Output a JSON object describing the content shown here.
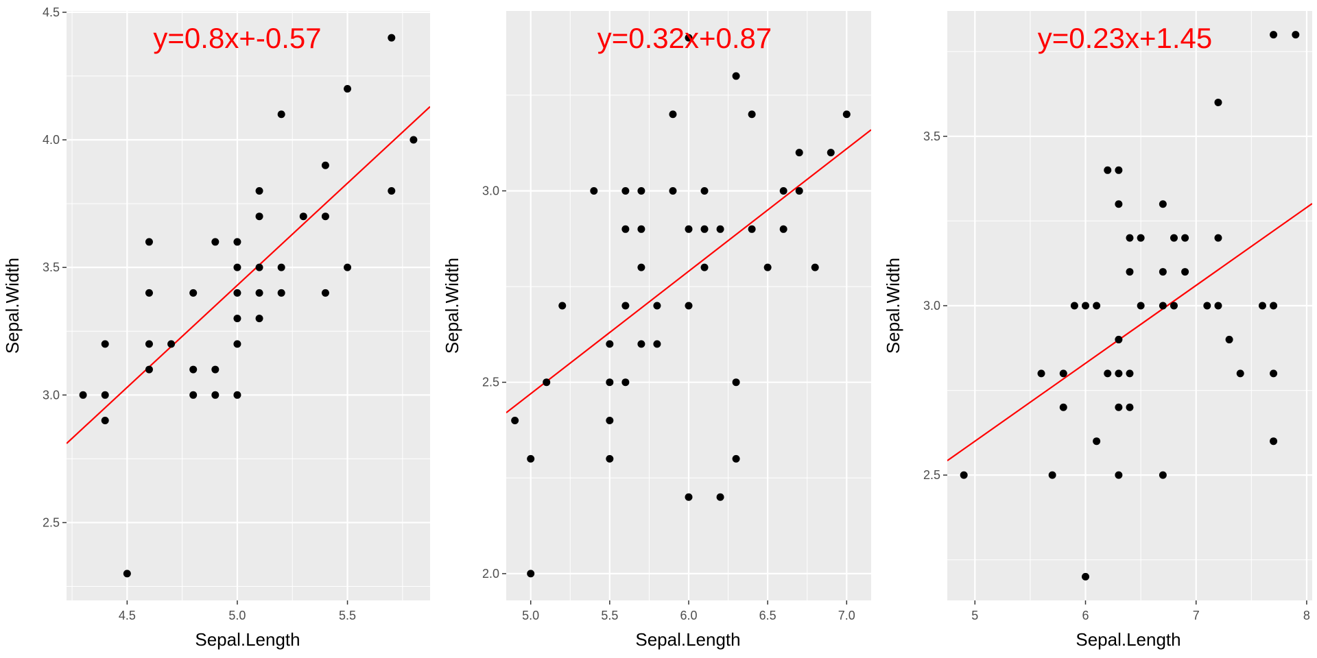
{
  "colors": {
    "panel_bg": "#ebebeb",
    "grid_major": "#ffffff",
    "point": "#000000",
    "fit_line": "#ff0000",
    "tick_text": "#4d4d4d"
  },
  "chart_data": [
    {
      "type": "scatter",
      "title": "",
      "equation_label": "y=0.8x+-0.57",
      "fit": {
        "slope": 0.8,
        "intercept": -0.57
      },
      "xlabel": "Sepal.Length",
      "ylabel": "Sepal.Width",
      "xlim": [
        4.225,
        5.875
      ],
      "ylim": [
        2.195,
        4.505
      ],
      "xticks": [
        4.5,
        5.0,
        5.5
      ],
      "xtick_labels": [
        "4.5",
        "5.0",
        "5.5"
      ],
      "yticks": [
        2.5,
        3.0,
        3.5,
        4.0,
        4.5
      ],
      "ytick_labels": [
        "2.5",
        "3.0",
        "3.5",
        "4.0",
        "4.5"
      ],
      "grid": true,
      "points": [
        [
          4.3,
          3.0
        ],
        [
          4.4,
          3.2
        ],
        [
          4.4,
          3.0
        ],
        [
          4.4,
          2.9
        ],
        [
          4.5,
          2.3
        ],
        [
          4.6,
          3.6
        ],
        [
          4.6,
          3.4
        ],
        [
          4.6,
          3.2
        ],
        [
          4.6,
          3.1
        ],
        [
          4.7,
          3.2
        ],
        [
          4.8,
          3.4
        ],
        [
          4.8,
          3.1
        ],
        [
          4.8,
          3.0
        ],
        [
          4.9,
          3.6
        ],
        [
          4.9,
          3.1
        ],
        [
          4.9,
          3.0
        ],
        [
          5.0,
          3.6
        ],
        [
          5.0,
          3.5
        ],
        [
          5.0,
          3.4
        ],
        [
          5.0,
          3.3
        ],
        [
          5.0,
          3.2
        ],
        [
          5.0,
          3.0
        ],
        [
          5.1,
          3.8
        ],
        [
          5.1,
          3.7
        ],
        [
          5.1,
          3.5
        ],
        [
          5.1,
          3.4
        ],
        [
          5.1,
          3.3
        ],
        [
          5.2,
          4.1
        ],
        [
          5.2,
          3.5
        ],
        [
          5.2,
          3.4
        ],
        [
          5.3,
          3.7
        ],
        [
          5.4,
          3.9
        ],
        [
          5.4,
          3.7
        ],
        [
          5.4,
          3.4
        ],
        [
          5.5,
          4.2
        ],
        [
          5.5,
          3.5
        ],
        [
          5.7,
          4.4
        ],
        [
          5.7,
          3.8
        ],
        [
          5.8,
          4.0
        ]
      ]
    },
    {
      "type": "scatter",
      "title": "",
      "equation_label": "y=0.32x+0.87",
      "fit": {
        "slope": 0.32,
        "intercept": 0.87
      },
      "xlabel": "Sepal.Length",
      "ylabel": "Sepal.Width",
      "xlim": [
        4.845,
        7.155
      ],
      "ylim": [
        1.93,
        3.47
      ],
      "xticks": [
        5.0,
        5.5,
        6.0,
        6.5,
        7.0
      ],
      "xtick_labels": [
        "5.0",
        "5.5",
        "6.0",
        "6.5",
        "7.0"
      ],
      "yticks": [
        2.0,
        2.5,
        3.0
      ],
      "ytick_labels": [
        "2.0",
        "2.5",
        "3.0"
      ],
      "grid": true,
      "points": [
        [
          4.9,
          2.4
        ],
        [
          5.0,
          2.3
        ],
        [
          5.0,
          2.0
        ],
        [
          5.1,
          2.5
        ],
        [
          5.2,
          2.7
        ],
        [
          5.4,
          3.0
        ],
        [
          5.5,
          2.6
        ],
        [
          5.5,
          2.5
        ],
        [
          5.5,
          2.4
        ],
        [
          5.5,
          2.3
        ],
        [
          5.6,
          3.0
        ],
        [
          5.6,
          2.9
        ],
        [
          5.6,
          2.7
        ],
        [
          5.6,
          2.5
        ],
        [
          5.7,
          3.0
        ],
        [
          5.7,
          2.9
        ],
        [
          5.7,
          2.8
        ],
        [
          5.7,
          2.6
        ],
        [
          5.8,
          2.7
        ],
        [
          5.8,
          2.6
        ],
        [
          5.9,
          3.2
        ],
        [
          5.9,
          3.0
        ],
        [
          6.0,
          3.4
        ],
        [
          6.0,
          2.9
        ],
        [
          6.0,
          2.7
        ],
        [
          6.0,
          2.2
        ],
        [
          6.1,
          3.0
        ],
        [
          6.1,
          2.9
        ],
        [
          6.1,
          2.8
        ],
        [
          6.2,
          2.9
        ],
        [
          6.2,
          2.2
        ],
        [
          6.3,
          3.3
        ],
        [
          6.3,
          2.5
        ],
        [
          6.3,
          2.3
        ],
        [
          6.4,
          3.2
        ],
        [
          6.4,
          2.9
        ],
        [
          6.5,
          2.8
        ],
        [
          6.6,
          3.0
        ],
        [
          6.6,
          2.9
        ],
        [
          6.7,
          3.1
        ],
        [
          6.7,
          3.0
        ],
        [
          6.8,
          2.8
        ],
        [
          6.9,
          3.1
        ],
        [
          7.0,
          3.2
        ]
      ]
    },
    {
      "type": "scatter",
      "title": "",
      "equation_label": "y=0.23x+1.45",
      "fit": {
        "slope": 0.23,
        "intercept": 1.45
      },
      "xlabel": "Sepal.Length",
      "ylabel": "Sepal.Width",
      "xlim": [
        4.75,
        8.05
      ],
      "ylim": [
        2.13,
        3.87
      ],
      "xticks": [
        5,
        6,
        7,
        8
      ],
      "xtick_labels": [
        "5",
        "6",
        "7",
        "8"
      ],
      "yticks": [
        2.5,
        3.0,
        3.5
      ],
      "ytick_labels": [
        "2.5",
        "3.0",
        "3.5"
      ],
      "grid": true,
      "points": [
        [
          4.9,
          2.5
        ],
        [
          5.6,
          2.8
        ],
        [
          5.7,
          2.5
        ],
        [
          5.8,
          2.8
        ],
        [
          5.8,
          2.7
        ],
        [
          5.9,
          3.0
        ],
        [
          6.0,
          3.0
        ],
        [
          6.0,
          2.2
        ],
        [
          6.1,
          3.0
        ],
        [
          6.1,
          2.6
        ],
        [
          6.2,
          3.4
        ],
        [
          6.2,
          2.8
        ],
        [
          6.3,
          3.4
        ],
        [
          6.3,
          3.3
        ],
        [
          6.3,
          2.9
        ],
        [
          6.3,
          2.8
        ],
        [
          6.3,
          2.7
        ],
        [
          6.3,
          2.5
        ],
        [
          6.4,
          3.2
        ],
        [
          6.4,
          3.1
        ],
        [
          6.4,
          2.8
        ],
        [
          6.4,
          2.7
        ],
        [
          6.5,
          3.2
        ],
        [
          6.5,
          3.0
        ],
        [
          6.7,
          3.3
        ],
        [
          6.7,
          3.1
        ],
        [
          6.7,
          3.0
        ],
        [
          6.7,
          2.5
        ],
        [
          6.8,
          3.2
        ],
        [
          6.8,
          3.0
        ],
        [
          6.9,
          3.2
        ],
        [
          6.9,
          3.1
        ],
        [
          7.1,
          3.0
        ],
        [
          7.2,
          3.6
        ],
        [
          7.2,
          3.2
        ],
        [
          7.2,
          3.0
        ],
        [
          7.3,
          2.9
        ],
        [
          7.4,
          2.8
        ],
        [
          7.6,
          3.0
        ],
        [
          7.7,
          3.8
        ],
        [
          7.7,
          3.0
        ],
        [
          7.7,
          2.8
        ],
        [
          7.7,
          2.6
        ],
        [
          7.9,
          3.8
        ]
      ]
    }
  ]
}
